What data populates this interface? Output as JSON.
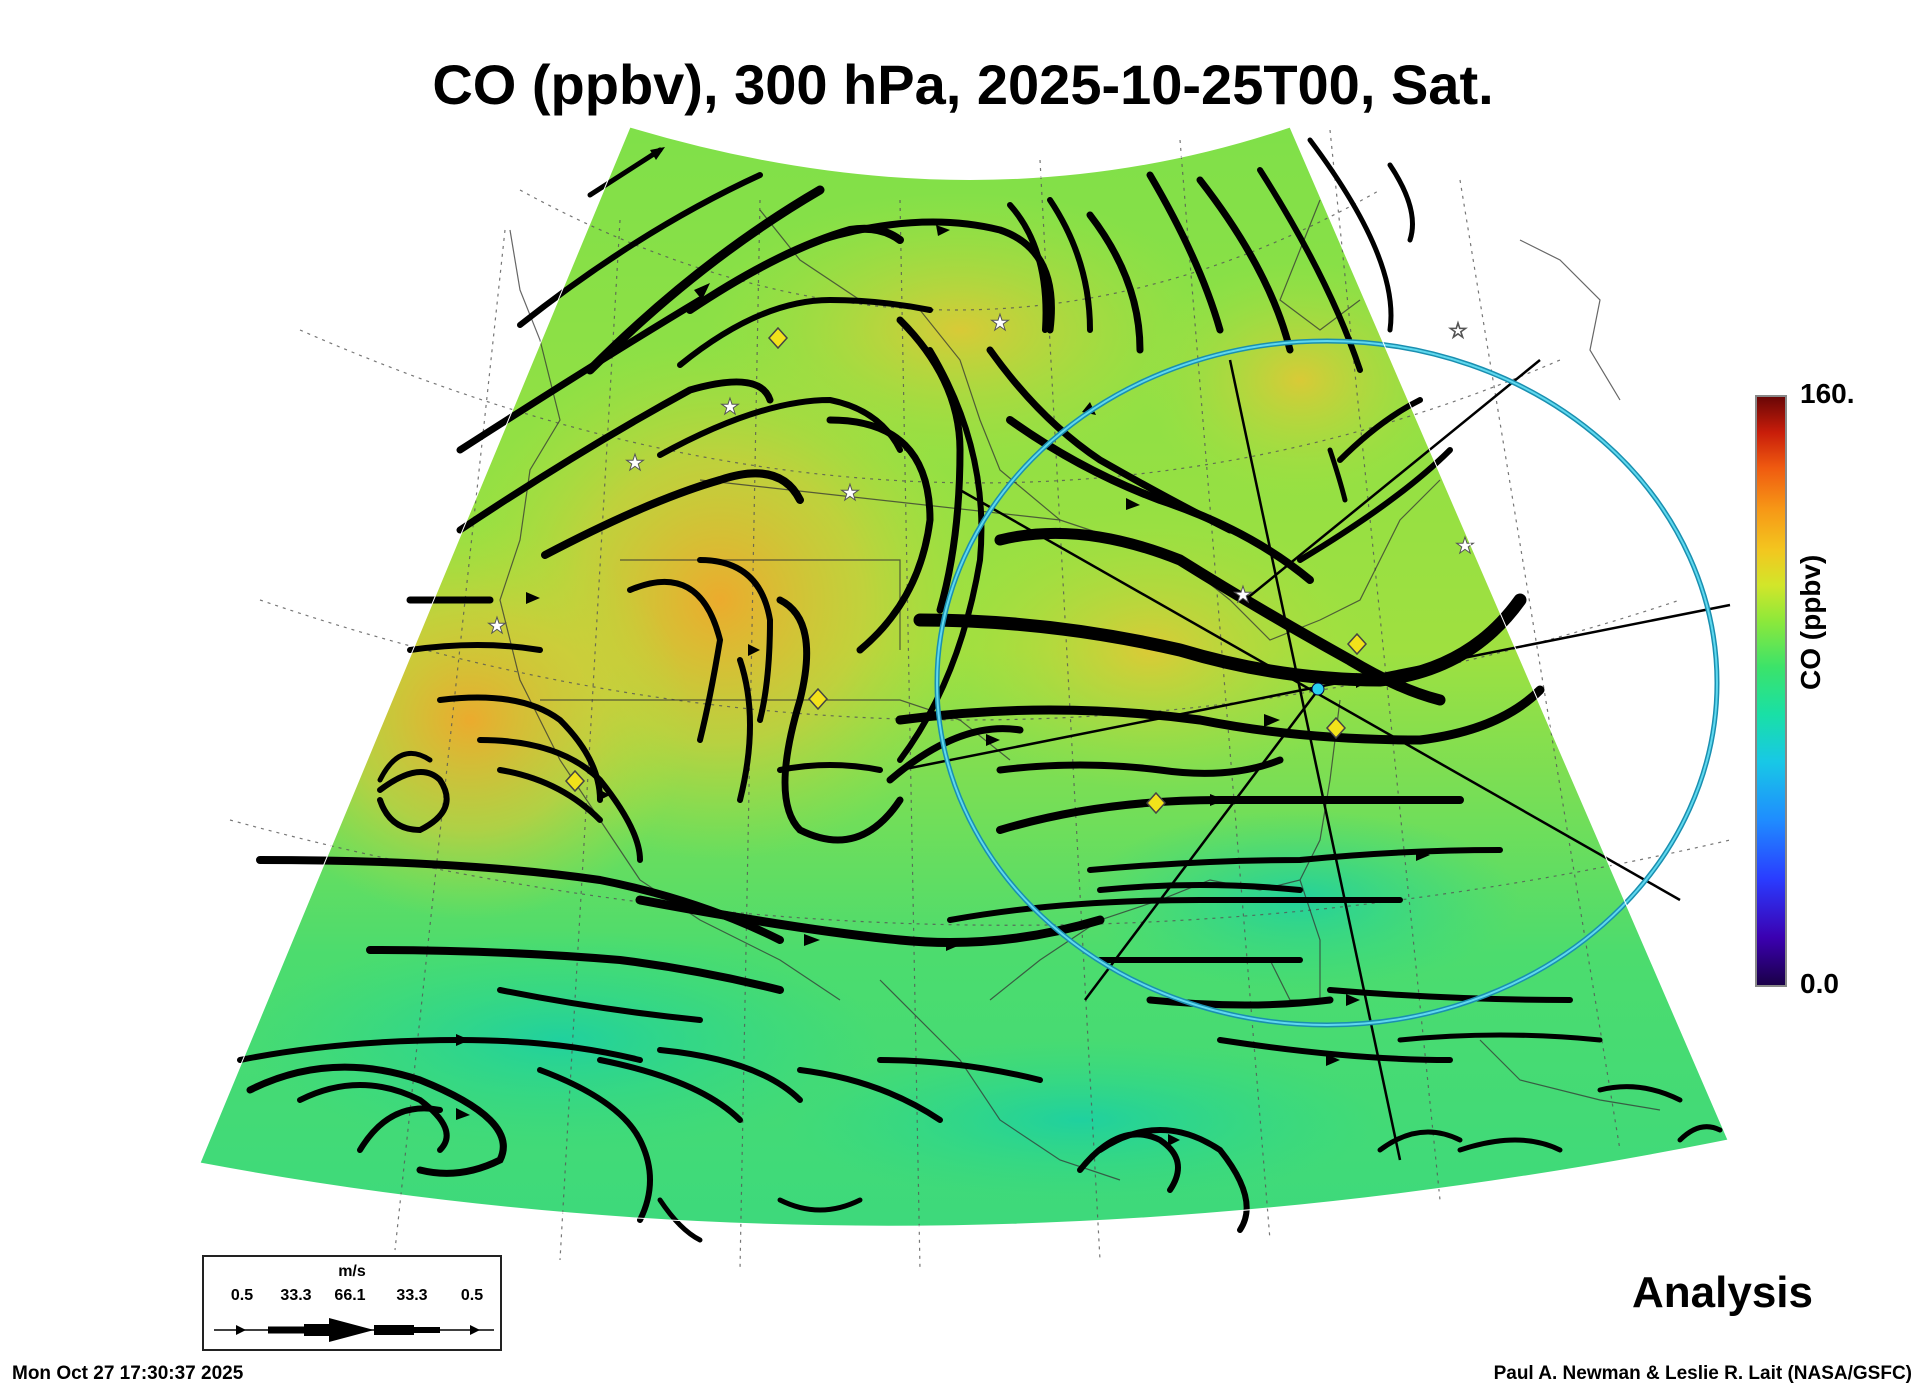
{
  "title": "CO (ppbv), 300 hPa, 2025-10-25T00, Sat.",
  "colorbar": {
    "max_label": "160.",
    "min_label": "0.0",
    "label": "CO (ppbv)",
    "range": [
      0,
      160
    ]
  },
  "legend": {
    "unit": "m/s",
    "values": [
      "0.5",
      "33.3",
      "66.1",
      "33.3",
      "0.5"
    ]
  },
  "analysis_label": "Analysis",
  "timestamp": "Mon Oct 27 17:30:37 2025",
  "credit": "Paul A. Newman & Leslie R. Lait (NASA/GSFC)",
  "colors": {
    "field_low": "#2ad88a",
    "field_mid": "#8fe44a",
    "field_high": "#e8b030",
    "streamline": "#000000",
    "circle": "#20b8d8",
    "marker": "#f2e21a"
  }
}
